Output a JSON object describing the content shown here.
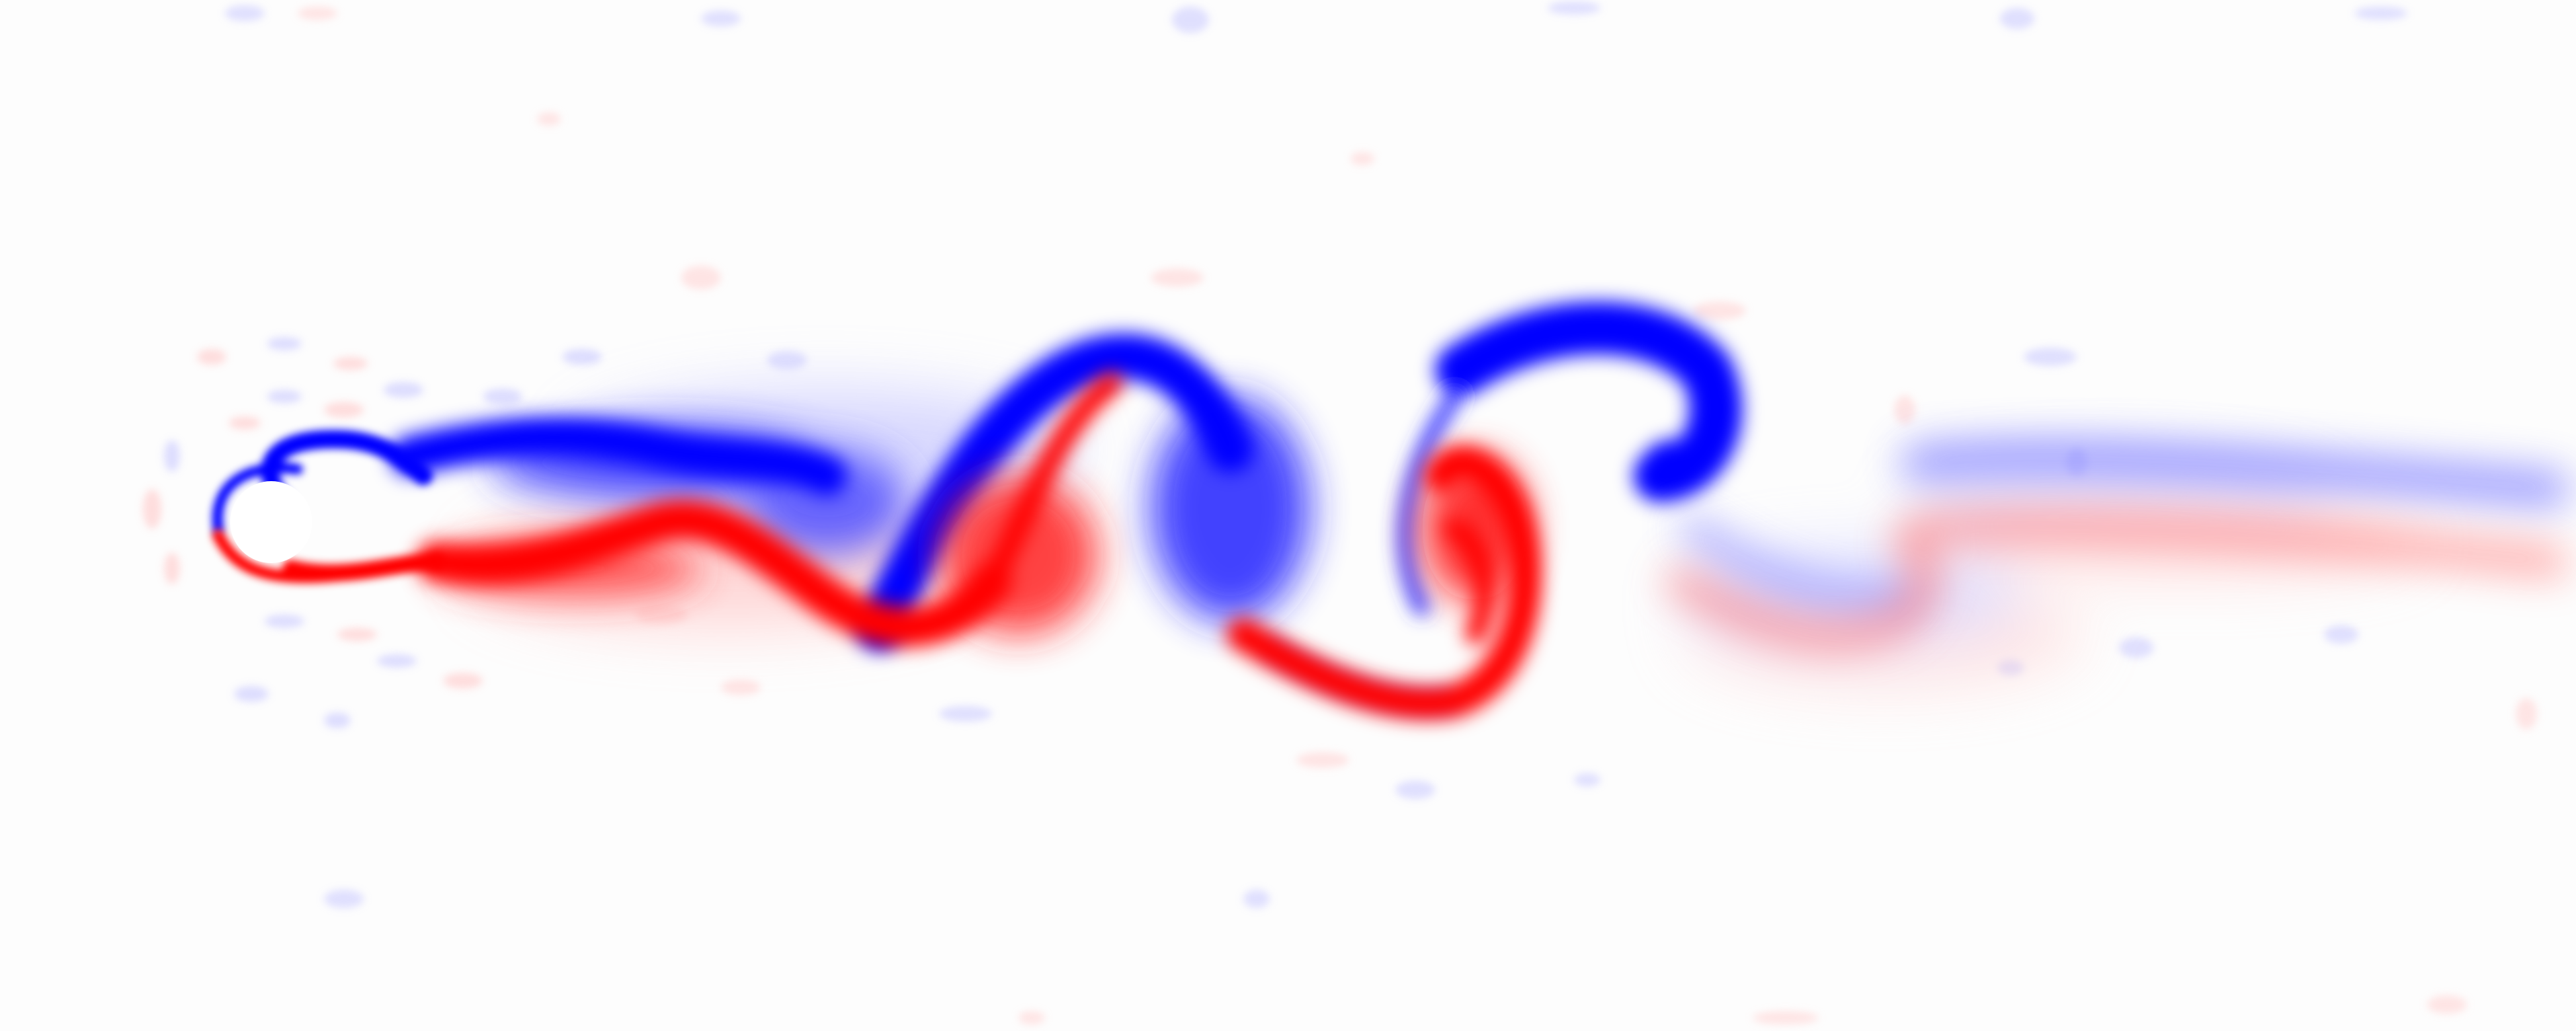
{
  "figure": {
    "kind": "vorticity-field",
    "colors": {
      "background": "#fdfdfd",
      "positive_vorticity": "#ff0000",
      "negative_vorticity": "#0000ff",
      "obstacle": "#ffffff"
    }
  }
}
